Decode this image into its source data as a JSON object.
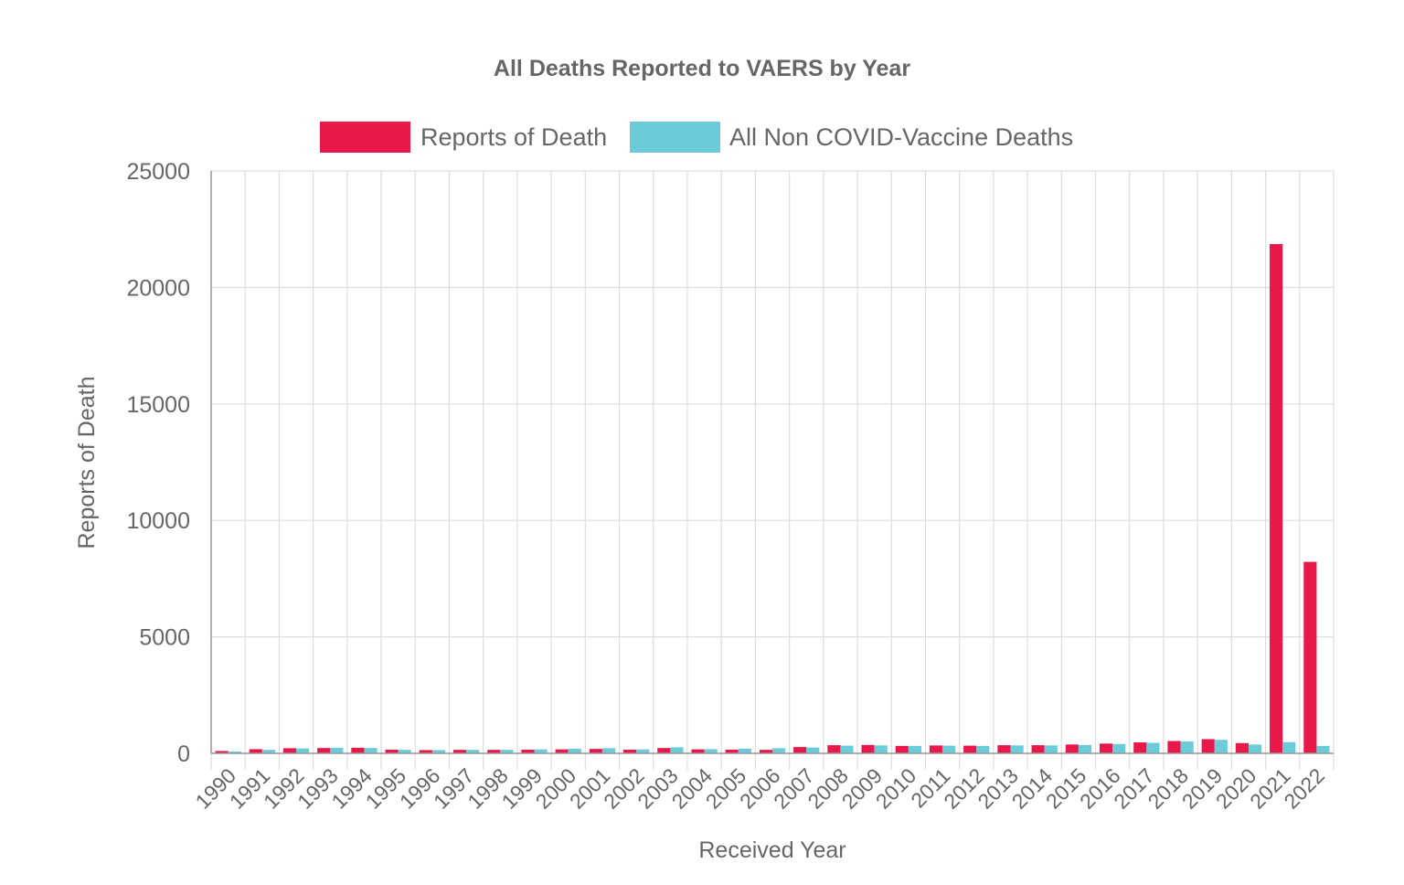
{
  "chart_data": {
    "type": "bar",
    "title": "All Deaths Reported to VAERS by Year",
    "xlabel": "Received Year",
    "ylabel": "Reports of Death",
    "ylim": [
      0,
      25000
    ],
    "yticks": [
      0,
      5000,
      10000,
      15000,
      20000,
      25000
    ],
    "grid": true,
    "legend_position": "top-center",
    "categories": [
      "1990",
      "1991",
      "1992",
      "1993",
      "1994",
      "1995",
      "1996",
      "1997",
      "1998",
      "1999",
      "2000",
      "2001",
      "2002",
      "2003",
      "2004",
      "2005",
      "2006",
      "2007",
      "2008",
      "2009",
      "2010",
      "2011",
      "2012",
      "2013",
      "2014",
      "2015",
      "2016",
      "2017",
      "2018",
      "2019",
      "2020",
      "2021",
      "2022"
    ],
    "series": [
      {
        "name": "Reports of Death",
        "color": "#e8194a",
        "values": [
          100,
          180,
          220,
          230,
          240,
          160,
          140,
          150,
          150,
          160,
          170,
          190,
          160,
          230,
          170,
          160,
          150,
          270,
          350,
          360,
          320,
          340,
          330,
          350,
          350,
          380,
          420,
          470,
          530,
          610,
          440,
          21860,
          8220
        ]
      },
      {
        "name": "All Non COVID-Vaccine Deaths",
        "color": "#6ccbd9",
        "values": [
          80,
          150,
          210,
          240,
          230,
          150,
          140,
          150,
          150,
          170,
          200,
          220,
          170,
          260,
          180,
          200,
          220,
          250,
          330,
          340,
          320,
          330,
          320,
          340,
          340,
          360,
          400,
          450,
          510,
          580,
          380,
          480,
          320
        ]
      }
    ]
  }
}
